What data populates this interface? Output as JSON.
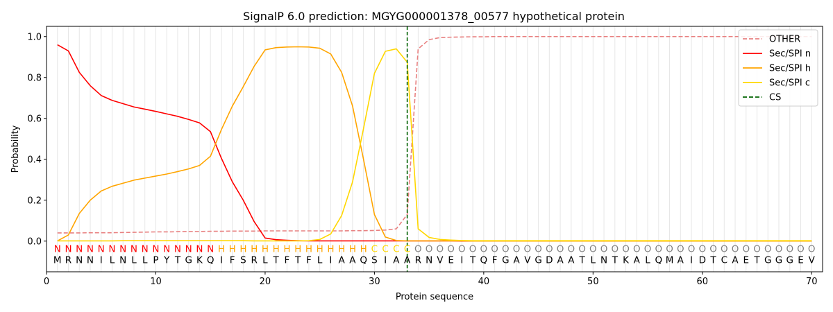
{
  "chart_data": {
    "type": "line",
    "title": "SignalP 6.0 prediction: MGYG000001378_00577 hypothetical protein",
    "xlabel": "Protein sequence",
    "ylabel": "Probability",
    "xlim": [
      0,
      71
    ],
    "ylim": [
      -0.15,
      1.05
    ],
    "xticks": [
      0,
      10,
      20,
      30,
      40,
      50,
      60,
      70
    ],
    "yticks": [
      0.0,
      0.2,
      0.4,
      0.6,
      0.8,
      1.0
    ],
    "grid": "vertical lines at each residue",
    "legend_position": "top-right",
    "sequence": [
      "M",
      "R",
      "N",
      "N",
      "I",
      "L",
      "N",
      "L",
      "L",
      "P",
      "Y",
      "T",
      "G",
      "K",
      "Q",
      "I",
      "F",
      "S",
      "R",
      "L",
      "T",
      "F",
      "T",
      "F",
      "L",
      "I",
      "A",
      "A",
      "Q",
      "S",
      "I",
      "A",
      "A",
      "R",
      "N",
      "V",
      "E",
      "I",
      "T",
      "Q",
      "F",
      "G",
      "A",
      "V",
      "G",
      "D",
      "A",
      "A",
      "T",
      "L",
      "N",
      "T",
      "K",
      "A",
      "L",
      "Q",
      "M",
      "A",
      "I",
      "D",
      "T",
      "C",
      "A",
      "E",
      "T",
      "G",
      "G",
      "G",
      "E",
      "V"
    ],
    "labels": [
      "N",
      "N",
      "N",
      "N",
      "N",
      "N",
      "N",
      "N",
      "N",
      "N",
      "N",
      "N",
      "N",
      "N",
      "N",
      "H",
      "H",
      "H",
      "H",
      "H",
      "H",
      "H",
      "H",
      "H",
      "H",
      "H",
      "H",
      "H",
      "H",
      "C",
      "C",
      "C",
      "C",
      "O",
      "O",
      "O",
      "O",
      "O",
      "O",
      "O",
      "O",
      "O",
      "O",
      "O",
      "O",
      "O",
      "O",
      "O",
      "O",
      "O",
      "O",
      "O",
      "O",
      "O",
      "O",
      "O",
      "O",
      "O",
      "O",
      "O",
      "O",
      "O",
      "O",
      "O",
      "O",
      "O",
      "O",
      "O",
      "O",
      "O"
    ],
    "label_colors": {
      "N": "#ff0000",
      "H": "#ffa500",
      "C": "#ffd700",
      "O": "#808080"
    },
    "cs_position": 33,
    "series": [
      {
        "name": "OTHER",
        "color": "#e88080",
        "dash": true,
        "values": [
          0.04,
          0.04,
          0.04,
          0.041,
          0.041,
          0.041,
          0.042,
          0.043,
          0.044,
          0.045,
          0.045,
          0.046,
          0.047,
          0.047,
          0.048,
          0.048,
          0.049,
          0.049,
          0.049,
          0.05,
          0.05,
          0.05,
          0.05,
          0.05,
          0.05,
          0.05,
          0.05,
          0.051,
          0.051,
          0.052,
          0.054,
          0.06,
          0.13,
          0.94,
          0.985,
          0.995,
          0.997,
          0.998,
          0.999,
          0.999,
          1,
          1,
          1,
          1,
          1,
          1,
          1,
          1,
          1,
          1,
          1,
          1,
          1,
          1,
          1,
          1,
          1,
          1,
          1,
          1,
          1,
          1,
          1,
          1,
          1,
          1,
          1,
          1,
          1,
          1
        ]
      },
      {
        "name": "Sec/SPI n",
        "color": "#ff0000",
        "dash": false,
        "values": [
          0.96,
          0.93,
          0.825,
          0.76,
          0.712,
          0.688,
          0.672,
          0.656,
          0.645,
          0.634,
          0.622,
          0.61,
          0.595,
          0.578,
          0.535,
          0.405,
          0.29,
          0.2,
          0.095,
          0.015,
          0.007,
          0.004,
          0.002,
          0.001,
          0.001,
          0.001,
          0.001,
          0.001,
          0.001,
          0.001,
          0.001,
          0.001,
          0.001,
          0.001,
          0.001,
          0.001,
          0.001,
          0,
          0,
          0,
          0,
          0,
          0,
          0,
          0,
          0,
          0,
          0,
          0,
          0,
          0,
          0,
          0,
          0,
          0,
          0,
          0,
          0,
          0,
          0,
          0,
          0,
          0,
          0,
          0,
          0,
          0,
          0,
          0,
          0
        ]
      },
      {
        "name": "Sec/SPI h",
        "color": "#ffa500",
        "dash": false,
        "values": [
          0.001,
          0.03,
          0.135,
          0.2,
          0.245,
          0.268,
          0.283,
          0.298,
          0.308,
          0.318,
          0.328,
          0.34,
          0.353,
          0.37,
          0.415,
          0.545,
          0.66,
          0.755,
          0.855,
          0.935,
          0.946,
          0.949,
          0.95,
          0.949,
          0.943,
          0.915,
          0.825,
          0.66,
          0.4,
          0.13,
          0.02,
          0.003,
          0.001,
          0.001,
          0.001,
          0.001,
          0.001,
          0.001,
          0,
          0,
          0,
          0,
          0,
          0,
          0,
          0,
          0,
          0,
          0,
          0,
          0,
          0,
          0,
          0,
          0,
          0,
          0,
          0,
          0,
          0,
          0,
          0,
          0,
          0,
          0,
          0,
          0,
          0,
          0,
          0
        ]
      },
      {
        "name": "Sec/SPI c",
        "color": "#ffd700",
        "dash": false,
        "values": [
          0.001,
          0.001,
          0.001,
          0.001,
          0.001,
          0.001,
          0.002,
          0.002,
          0.002,
          0.002,
          0.002,
          0.002,
          0.002,
          0.002,
          0.002,
          0.002,
          0.002,
          0.002,
          0.001,
          0.001,
          0.001,
          0.001,
          0.001,
          0.002,
          0.008,
          0.035,
          0.125,
          0.29,
          0.55,
          0.82,
          0.928,
          0.94,
          0.875,
          0.06,
          0.018,
          0.008,
          0.005,
          0.003,
          0.002,
          0.002,
          0.002,
          0.002,
          0.002,
          0.002,
          0.002,
          0.002,
          0.002,
          0.002,
          0.002,
          0.002,
          0.002,
          0.002,
          0.002,
          0.002,
          0.002,
          0.002,
          0.002,
          0.002,
          0.002,
          0.002,
          0.002,
          0.002,
          0.002,
          0.002,
          0.002,
          0.002,
          0.002,
          0.002,
          0.002,
          0.002
        ]
      }
    ],
    "legend": [
      "OTHER",
      "Sec/SPI n",
      "Sec/SPI h",
      "Sec/SPI c",
      "CS"
    ],
    "cs_color": "#006400"
  }
}
